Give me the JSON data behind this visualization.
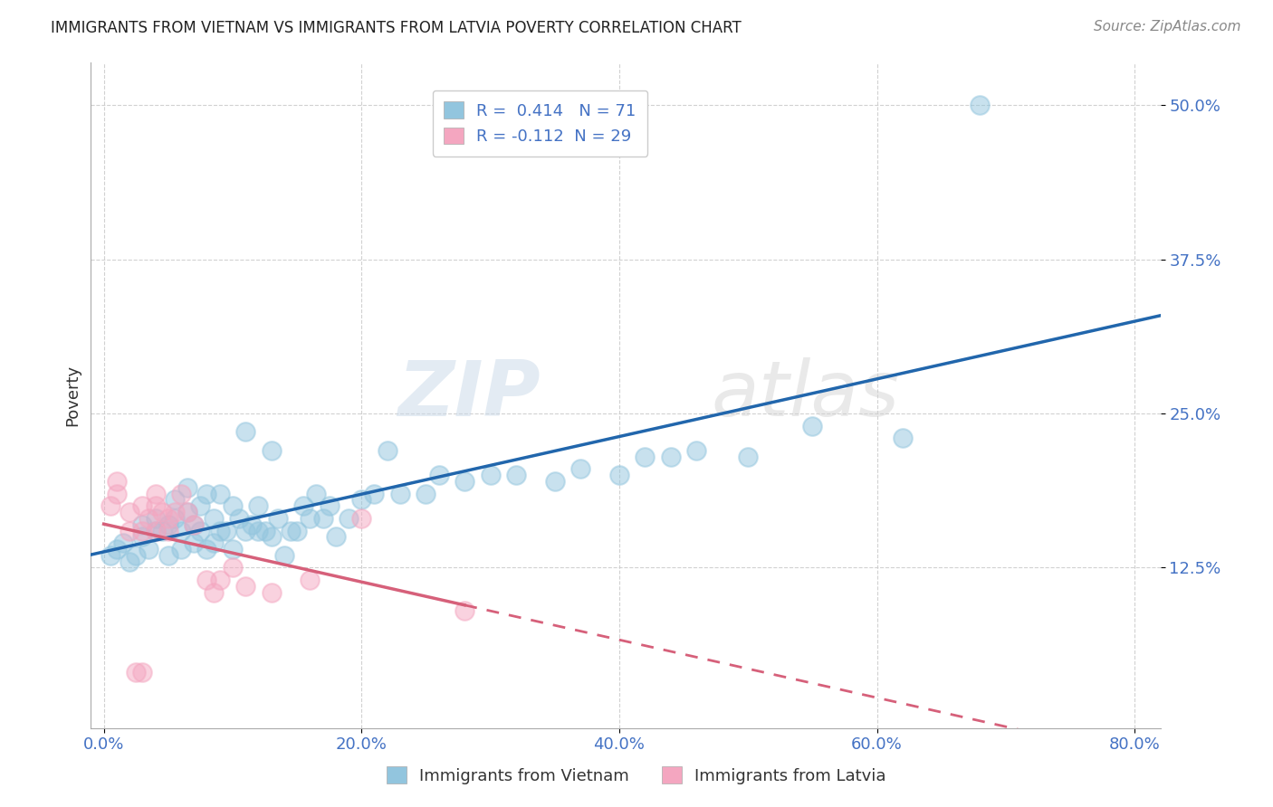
{
  "title": "IMMIGRANTS FROM VIETNAM VS IMMIGRANTS FROM LATVIA POVERTY CORRELATION CHART",
  "source": "Source: ZipAtlas.com",
  "xlabel_ticks": [
    "0.0%",
    "20.0%",
    "40.0%",
    "60.0%",
    "80.0%"
  ],
  "xlabel_tick_vals": [
    0.0,
    0.2,
    0.4,
    0.6,
    0.8
  ],
  "ylabel": "Poverty",
  "ylabel_ticks": [
    "12.5%",
    "25.0%",
    "37.5%",
    "50.0%"
  ],
  "ylabel_tick_vals": [
    0.125,
    0.25,
    0.375,
    0.5
  ],
  "xlim": [
    -0.01,
    0.82
  ],
  "ylim": [
    -0.005,
    0.535
  ],
  "legend_vietnam": "Immigrants from Vietnam",
  "legend_latvia": "Immigrants from Latvia",
  "R_vietnam": 0.414,
  "N_vietnam": 71,
  "R_latvia": -0.112,
  "N_latvia": 29,
  "color_vietnam": "#92c5de",
  "color_latvia": "#f4a6c0",
  "line_color_vietnam": "#2166ac",
  "line_color_latvia": "#d6607a",
  "watermark_zip": "ZIP",
  "watermark_atlas": "atlas",
  "tick_color": "#4472c4",
  "legend_text_color": "#4472c4",
  "vietnam_x": [
    0.005,
    0.01,
    0.015,
    0.02,
    0.025,
    0.03,
    0.03,
    0.035,
    0.04,
    0.04,
    0.045,
    0.05,
    0.05,
    0.055,
    0.055,
    0.06,
    0.06,
    0.065,
    0.065,
    0.07,
    0.07,
    0.075,
    0.075,
    0.08,
    0.08,
    0.085,
    0.085,
    0.09,
    0.09,
    0.095,
    0.1,
    0.1,
    0.105,
    0.11,
    0.11,
    0.115,
    0.12,
    0.12,
    0.125,
    0.13,
    0.13,
    0.135,
    0.14,
    0.145,
    0.15,
    0.155,
    0.16,
    0.165,
    0.17,
    0.175,
    0.18,
    0.19,
    0.2,
    0.21,
    0.22,
    0.23,
    0.25,
    0.26,
    0.28,
    0.3,
    0.32,
    0.35,
    0.37,
    0.4,
    0.42,
    0.44,
    0.46,
    0.5,
    0.55,
    0.62,
    0.68
  ],
  "vietnam_y": [
    0.135,
    0.14,
    0.145,
    0.13,
    0.135,
    0.15,
    0.16,
    0.14,
    0.155,
    0.165,
    0.155,
    0.135,
    0.16,
    0.165,
    0.18,
    0.14,
    0.155,
    0.17,
    0.19,
    0.145,
    0.16,
    0.155,
    0.175,
    0.14,
    0.185,
    0.145,
    0.165,
    0.155,
    0.185,
    0.155,
    0.14,
    0.175,
    0.165,
    0.155,
    0.235,
    0.16,
    0.155,
    0.175,
    0.155,
    0.15,
    0.22,
    0.165,
    0.135,
    0.155,
    0.155,
    0.175,
    0.165,
    0.185,
    0.165,
    0.175,
    0.15,
    0.165,
    0.18,
    0.185,
    0.22,
    0.185,
    0.185,
    0.2,
    0.195,
    0.2,
    0.2,
    0.195,
    0.205,
    0.2,
    0.215,
    0.215,
    0.22,
    0.215,
    0.24,
    0.23,
    0.5
  ],
  "latvia_x": [
    0.005,
    0.01,
    0.01,
    0.02,
    0.02,
    0.025,
    0.03,
    0.03,
    0.03,
    0.035,
    0.04,
    0.04,
    0.04,
    0.045,
    0.05,
    0.05,
    0.055,
    0.06,
    0.065,
    0.07,
    0.08,
    0.085,
    0.09,
    0.1,
    0.11,
    0.13,
    0.16,
    0.2,
    0.28
  ],
  "latvia_y": [
    0.175,
    0.185,
    0.195,
    0.155,
    0.17,
    0.04,
    0.155,
    0.175,
    0.04,
    0.165,
    0.155,
    0.175,
    0.185,
    0.17,
    0.155,
    0.165,
    0.17,
    0.185,
    0.17,
    0.16,
    0.115,
    0.105,
    0.115,
    0.125,
    0.11,
    0.105,
    0.115,
    0.165,
    0.09
  ]
}
